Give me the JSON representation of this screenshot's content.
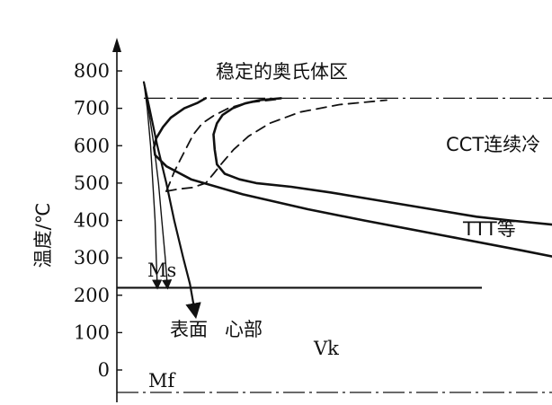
{
  "chart_data": {
    "type": "line",
    "ylabel": "温度/℃",
    "ylim": [
      -70,
      850
    ],
    "y_ticks": [
      0,
      100,
      200,
      300,
      400,
      500,
      600,
      700,
      800
    ],
    "region_label": "稳定的奥氏体区",
    "ms": {
      "label": "Ms",
      "temp": 220
    },
    "mf": {
      "label": "Mf",
      "temp": -60
    },
    "ae1_temp": 727,
    "curve_labels": {
      "cct": "CCT连续冷",
      "ttt": "TTT等",
      "surface": "表面",
      "core": "心部",
      "vk": "Vk"
    },
    "series": [
      {
        "key": "ttt_start",
        "style": "solid",
        "points": [
          [
            7.9,
            727
          ],
          [
            7.2,
            715
          ],
          [
            6.0,
            700
          ],
          [
            4.8,
            675
          ],
          [
            4.1,
            650
          ],
          [
            3.5,
            620
          ],
          [
            3.3,
            595
          ],
          [
            3.4,
            575
          ],
          [
            4.4,
            545
          ],
          [
            6.6,
            510
          ],
          [
            11.2,
            470
          ],
          [
            17,
            430
          ],
          [
            22,
            400
          ],
          [
            29,
            360
          ],
          [
            36,
            320
          ],
          [
            41,
            290
          ],
          [
            44,
            265
          ],
          [
            44.8,
            236
          ]
        ]
      },
      {
        "key": "ttt_finish",
        "style": "solid",
        "points": [
          [
            14.6,
            727
          ],
          [
            12.7,
            722
          ],
          [
            11.4,
            713
          ],
          [
            10.3,
            700
          ],
          [
            9.4,
            682
          ],
          [
            8.9,
            660
          ],
          [
            8.6,
            630
          ],
          [
            8.7,
            590
          ],
          [
            8.9,
            550
          ],
          [
            9.6,
            525
          ],
          [
            10.9,
            510
          ],
          [
            12.4,
            500
          ],
          [
            15.5,
            490
          ],
          [
            19,
            475
          ],
          [
            23,
            455
          ],
          [
            28,
            430
          ],
          [
            32,
            410
          ],
          [
            35,
            400
          ],
          [
            40,
            385
          ],
          [
            45,
            362
          ],
          [
            52,
            336
          ],
          [
            60,
            310
          ]
        ]
      },
      {
        "key": "cct_start",
        "style": "dashed",
        "points": [
          [
            4.4,
            478
          ],
          [
            4.7,
            500
          ],
          [
            5.1,
            530
          ],
          [
            5.6,
            560
          ],
          [
            6.2,
            595
          ],
          [
            6.8,
            630
          ],
          [
            7.6,
            660
          ],
          [
            8.6,
            680
          ],
          [
            9.9,
            700
          ],
          [
            11.6,
            715
          ],
          [
            14.6,
            725
          ]
        ]
      },
      {
        "key": "cct_finish",
        "style": "dashed",
        "points": [
          [
            4.4,
            478
          ],
          [
            5.5,
            484
          ],
          [
            6.7,
            488
          ],
          [
            7.9,
            500
          ],
          [
            8.6,
            525
          ],
          [
            9.4,
            555
          ],
          [
            10.4,
            590
          ],
          [
            11.7,
            625
          ],
          [
            13.6,
            660
          ],
          [
            16.3,
            690
          ],
          [
            19.8,
            710
          ],
          [
            24,
            722
          ]
        ]
      },
      {
        "key": "surface_cooling",
        "style": "arrow",
        "points": [
          [
            2.4,
            770
          ],
          [
            2.7,
            700
          ],
          [
            3.0,
            600
          ],
          [
            3.2,
            500
          ],
          [
            3.4,
            400
          ],
          [
            3.5,
            300
          ],
          [
            3.6,
            220
          ]
        ]
      },
      {
        "key": "core_cooling",
        "style": "arrow",
        "points": [
          [
            2.4,
            770
          ],
          [
            2.8,
            700
          ],
          [
            3.3,
            600
          ],
          [
            3.7,
            500
          ],
          [
            4.0,
            400
          ],
          [
            4.3,
            300
          ],
          [
            4.5,
            220
          ]
        ]
      },
      {
        "key": "vk",
        "style": "arrow",
        "points": [
          [
            2.4,
            770
          ],
          [
            2.9,
            700
          ],
          [
            3.6,
            600
          ],
          [
            4.4,
            500
          ],
          [
            5.1,
            400
          ],
          [
            5.9,
            300
          ],
          [
            6.5,
            230
          ],
          [
            7.0,
            145
          ]
        ]
      }
    ]
  }
}
